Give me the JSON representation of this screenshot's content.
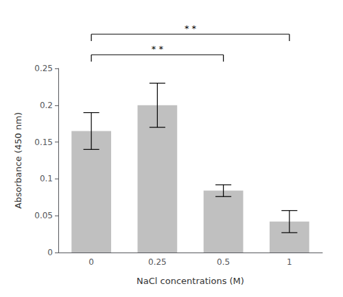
{
  "chart_data": {
    "type": "bar",
    "categories": [
      "0",
      "0.25",
      "0.5",
      "1"
    ],
    "values": [
      0.165,
      0.2,
      0.084,
      0.042
    ],
    "errors": [
      0.025,
      0.03,
      0.008,
      0.015
    ],
    "color": "#c0c0c0",
    "xlabel": "NaCl concentrations (M)",
    "ylabel": "Absorbance (450 nm)",
    "ylim": [
      0,
      0.25
    ],
    "yticks": [
      0,
      0.05,
      0.1,
      0.15,
      0.2,
      0.25
    ],
    "grid": false,
    "brackets": [
      {
        "categories": [
          "0",
          "0.5"
        ],
        "label": "* *"
      },
      {
        "categories": [
          "0",
          "1"
        ],
        "label": "* *"
      }
    ]
  }
}
